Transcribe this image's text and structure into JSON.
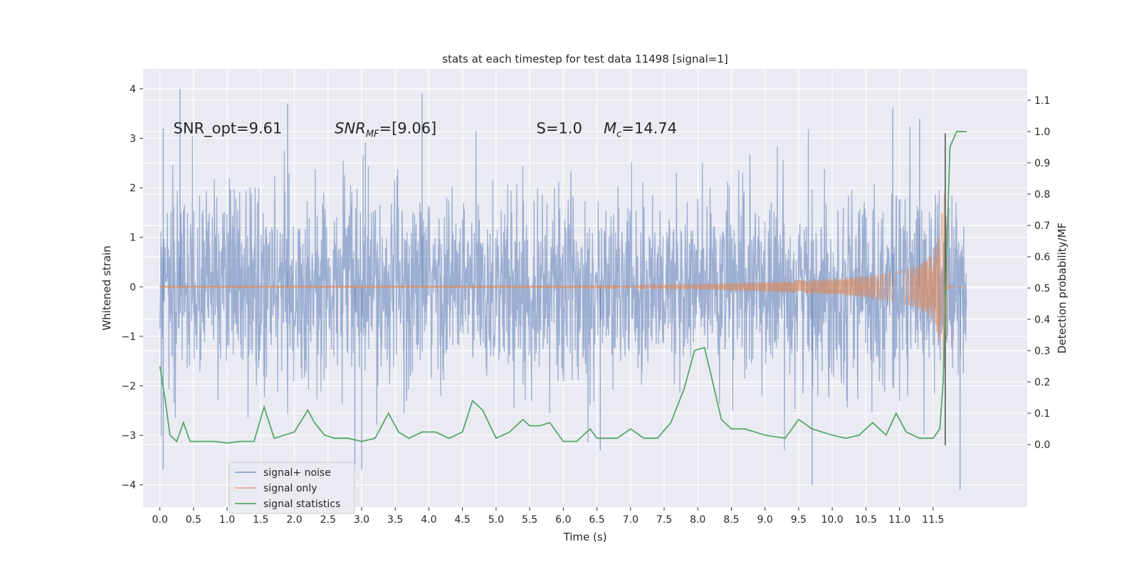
{
  "chart_data": {
    "type": "line",
    "title": "stats at each timestep for test data 11498 [signal=1]",
    "xlabel": "Time (s)",
    "ylabel": "Whitened strain",
    "ylabel_right": "Detection probability/MF",
    "xlim": [
      -0.25,
      12.9
    ],
    "ylim": [
      -4.45,
      4.4
    ],
    "ylim_right": [
      -0.2,
      1.2
    ],
    "xticks": [
      0.0,
      0.5,
      1.0,
      1.5,
      2.0,
      2.5,
      3.0,
      3.5,
      4.0,
      4.5,
      5.0,
      5.5,
      6.0,
      6.5,
      7.0,
      7.5,
      8.0,
      8.5,
      9.0,
      9.5,
      10.0,
      10.5,
      11.0,
      11.5
    ],
    "xtick_labels": [
      "0.0",
      "0.5",
      "1.0",
      "1.5",
      "2.0",
      "2.5",
      "3.0",
      "3.5",
      "4.0",
      "4.5",
      "5.0",
      "5.5",
      "6.0",
      "6.5",
      "7.0",
      "7.5",
      "8.0",
      "8.5",
      "9.0",
      "9.5",
      "10.0",
      "10.5",
      "11.0",
      "11.5"
    ],
    "yticks": [
      -4,
      -3,
      -2,
      -1,
      0,
      1,
      2,
      3,
      4
    ],
    "ytick_labels": [
      "−4",
      "−3",
      "−2",
      "−1",
      "0",
      "1",
      "2",
      "3",
      "4"
    ],
    "yticks_right": [
      0.0,
      0.1,
      0.2,
      0.3,
      0.4,
      0.5,
      0.6,
      0.7,
      0.8,
      0.9,
      1.0,
      1.1
    ],
    "ytick_labels_right": [
      "0.0",
      "0.1",
      "0.2",
      "0.3",
      "0.4",
      "0.5",
      "0.6",
      "0.7",
      "0.8",
      "0.9",
      "1.0",
      "1.1"
    ],
    "grid": true,
    "legend_placement": "lower-left",
    "annotations": [
      {
        "label": "SNR_opt=9.61",
        "x": 0.2,
        "y": 3.2
      },
      {
        "label": "SNR_MF=[9.06]",
        "x": 2.6,
        "y": 3.2
      },
      {
        "label": "S=1.0",
        "x": 5.6,
        "y": 3.2
      },
      {
        "label": "M_c=14.74",
        "x": 6.6,
        "y": 3.2
      }
    ],
    "vertical_line": {
      "x": 11.68,
      "y_range": [
        -3.2,
        3.1
      ]
    },
    "series": [
      {
        "name": "signal+ noise",
        "axis": "left",
        "color": "#4c72b0",
        "x_range": [
          0.0,
          12.0
        ],
        "envelope": {
          "typical_abs": 1.9,
          "min": -4.1,
          "max": 4.0
        },
        "peaks": [
          {
            "x": 0.05,
            "y": 3.2
          },
          {
            "x": 0.3,
            "y": 4.0
          },
          {
            "x": 1.9,
            "y": 3.7
          },
          {
            "x": 3.9,
            "y": 3.9
          },
          {
            "x": 10.9,
            "y": 3.6
          },
          {
            "x": 11.3,
            "y": 3.4
          },
          {
            "x": 0.05,
            "y": -3.7
          },
          {
            "x": 2.9,
            "y": -3.6
          },
          {
            "x": 3.0,
            "y": -3.7
          },
          {
            "x": 9.7,
            "y": -4.0
          },
          {
            "x": 11.9,
            "y": -4.1
          },
          {
            "x": 6.55,
            "y": -3.3
          }
        ]
      },
      {
        "name": "signal only",
        "axis": "left",
        "color": "#dd8452",
        "type": "chirp",
        "x": [
          0.0,
          6.0,
          8.0,
          9.0,
          10.0,
          10.5,
          11.0,
          11.3,
          11.5,
          11.6,
          11.65,
          11.68,
          11.72,
          12.0
        ],
        "amplitude": [
          0.02,
          0.03,
          0.06,
          0.1,
          0.16,
          0.22,
          0.32,
          0.45,
          0.7,
          1.1,
          1.7,
          2.1,
          0.05,
          0.0
        ]
      },
      {
        "name": "signal statistics",
        "axis": "right",
        "color": "#55a868",
        "x": [
          0.0,
          0.08,
          0.15,
          0.25,
          0.35,
          0.45,
          0.55,
          0.65,
          0.8,
          1.0,
          1.2,
          1.4,
          1.55,
          1.7,
          1.85,
          2.0,
          2.2,
          2.3,
          2.45,
          2.6,
          2.8,
          3.0,
          3.2,
          3.4,
          3.55,
          3.7,
          3.9,
          4.1,
          4.3,
          4.5,
          4.65,
          4.8,
          5.0,
          5.2,
          5.4,
          5.5,
          5.65,
          5.8,
          6.0,
          6.2,
          6.4,
          6.5,
          6.6,
          6.8,
          7.0,
          7.2,
          7.4,
          7.6,
          7.8,
          7.95,
          8.1,
          8.2,
          8.35,
          8.5,
          8.7,
          9.0,
          9.3,
          9.5,
          9.7,
          10.0,
          10.2,
          10.4,
          10.6,
          10.8,
          10.95,
          11.1,
          11.3,
          11.5,
          11.6,
          11.65,
          11.7,
          11.75,
          11.85,
          12.0
        ],
        "y": [
          0.25,
          0.14,
          0.03,
          0.01,
          0.07,
          0.01,
          0.01,
          0.01,
          0.01,
          0.005,
          0.01,
          0.01,
          0.12,
          0.02,
          0.03,
          0.04,
          0.11,
          0.07,
          0.03,
          0.02,
          0.02,
          0.01,
          0.02,
          0.1,
          0.04,
          0.02,
          0.04,
          0.04,
          0.02,
          0.04,
          0.14,
          0.11,
          0.02,
          0.04,
          0.08,
          0.06,
          0.06,
          0.07,
          0.01,
          0.01,
          0.05,
          0.02,
          0.02,
          0.02,
          0.05,
          0.02,
          0.02,
          0.07,
          0.18,
          0.3,
          0.31,
          0.22,
          0.08,
          0.05,
          0.05,
          0.03,
          0.02,
          0.08,
          0.05,
          0.03,
          0.02,
          0.03,
          0.07,
          0.03,
          0.1,
          0.04,
          0.02,
          0.02,
          0.05,
          0.2,
          0.6,
          0.95,
          1.0,
          1.0
        ]
      }
    ]
  }
}
